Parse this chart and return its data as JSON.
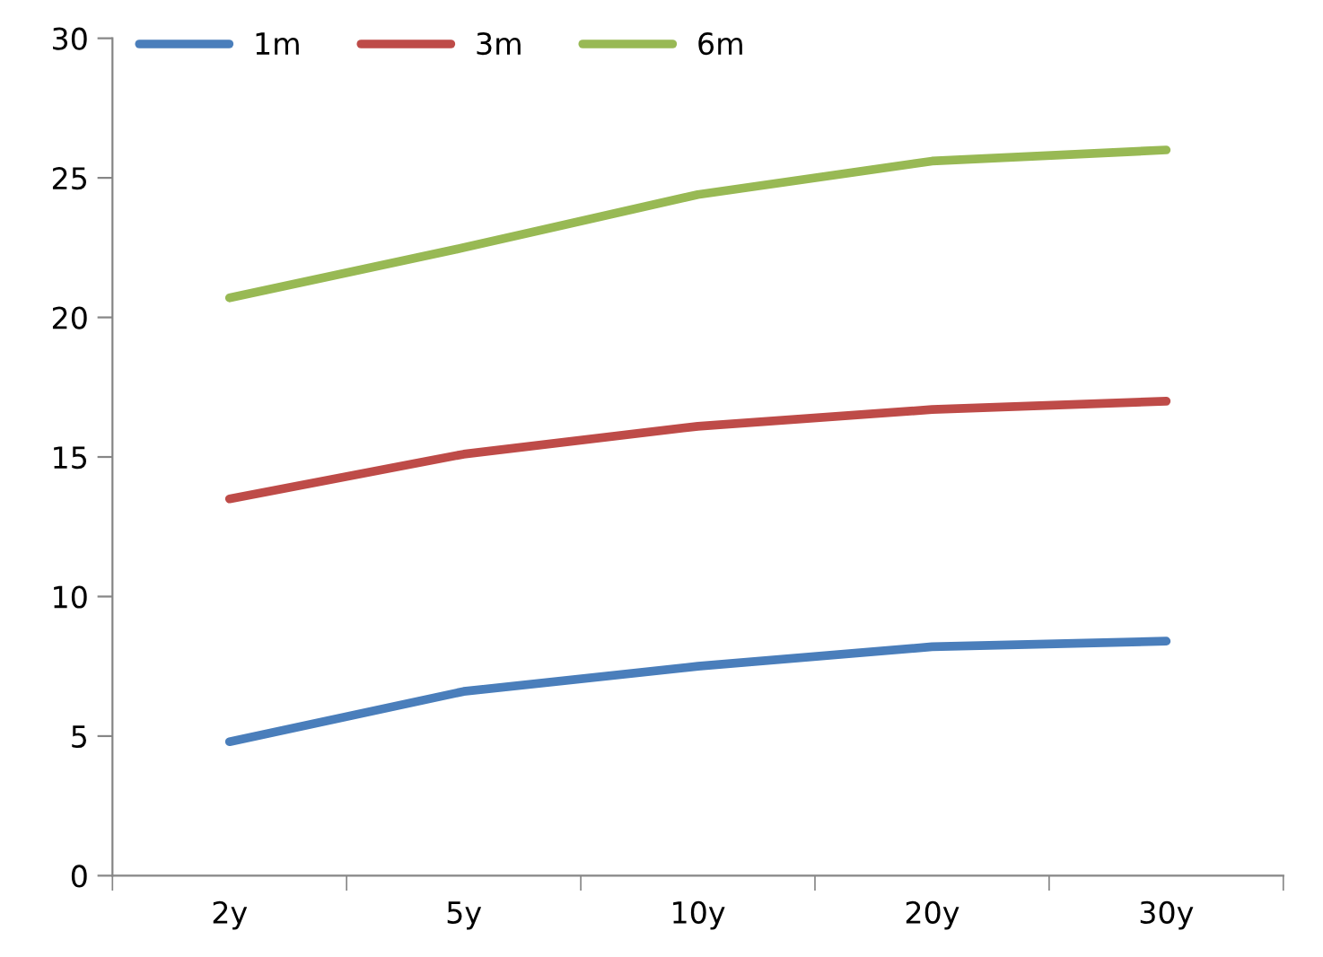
{
  "chart_data": {
    "type": "line",
    "categories": [
      "2y",
      "5y",
      "10y",
      "20y",
      "30y"
    ],
    "series": [
      {
        "name": "1m",
        "color": "#4a7ebb",
        "values": [
          4.8,
          6.6,
          7.5,
          8.2,
          8.4
        ]
      },
      {
        "name": "3m",
        "color": "#be4b48",
        "values": [
          13.5,
          15.1,
          16.1,
          16.7,
          17.0
        ]
      },
      {
        "name": "6m",
        "color": "#98b954",
        "values": [
          20.7,
          22.5,
          24.4,
          25.6,
          26.0
        ]
      }
    ],
    "ylim": [
      0,
      30
    ],
    "yticks": [
      0,
      5,
      10,
      15,
      20,
      25,
      30
    ],
    "grid": false,
    "legend": "top left",
    "marker": "none",
    "line_style": "solid"
  }
}
